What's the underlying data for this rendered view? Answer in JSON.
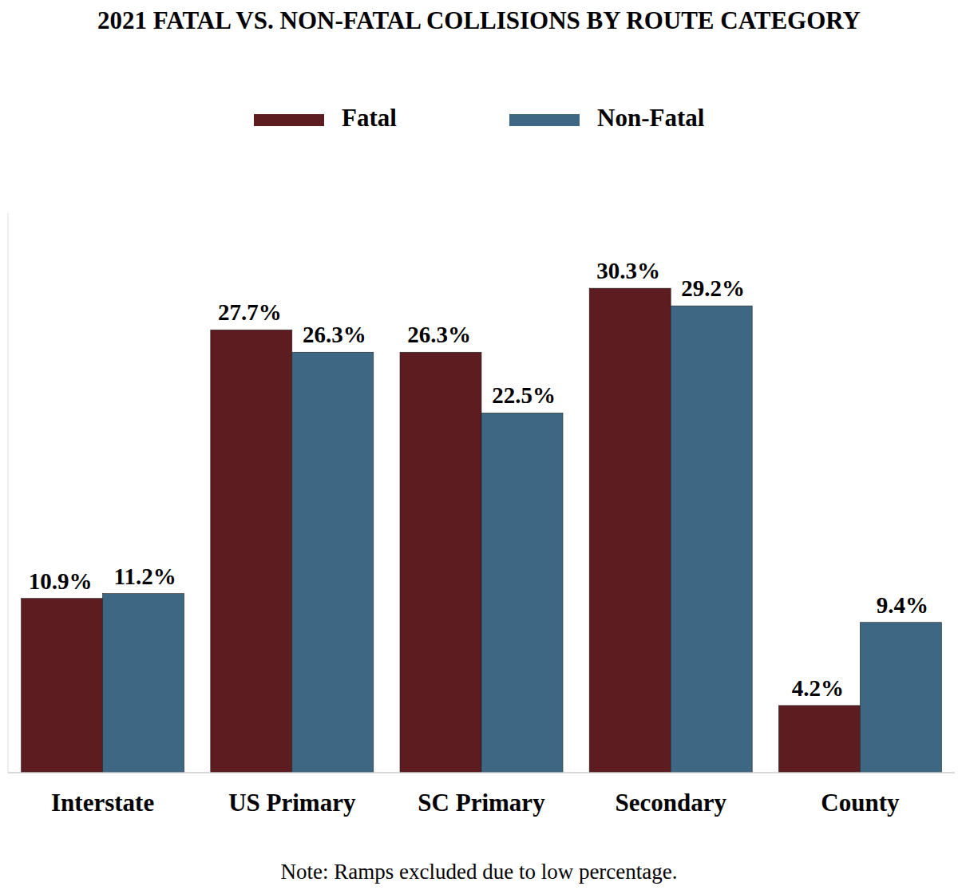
{
  "chart_data": {
    "type": "bar",
    "title": "2021 FATAL VS. NON-FATAL COLLISIONS BY ROUTE CATEGORY",
    "note": "Note: Ramps excluded due to low percentage.",
    "categories": [
      "Interstate",
      "US Primary",
      "SC Primary",
      "Secondary",
      "County"
    ],
    "series": [
      {
        "name": "Fatal",
        "color": "#5c1c20",
        "values": [
          10.9,
          27.7,
          26.3,
          30.3,
          4.2
        ],
        "value_labels": [
          "10.9%",
          "27.7%",
          "26.3%",
          "30.3%",
          "4.2%"
        ]
      },
      {
        "name": "Non-Fatal",
        "color": "#3d6783",
        "values": [
          11.2,
          26.3,
          22.5,
          29.2,
          9.4
        ],
        "value_labels": [
          "11.2%",
          "26.3%",
          "22.5%",
          "29.2%",
          "9.4%"
        ]
      }
    ],
    "ylim": [
      0,
      35
    ],
    "yticks": [],
    "grid": false,
    "legend": "top",
    "data_labels": true,
    "tick_labels": "x"
  }
}
